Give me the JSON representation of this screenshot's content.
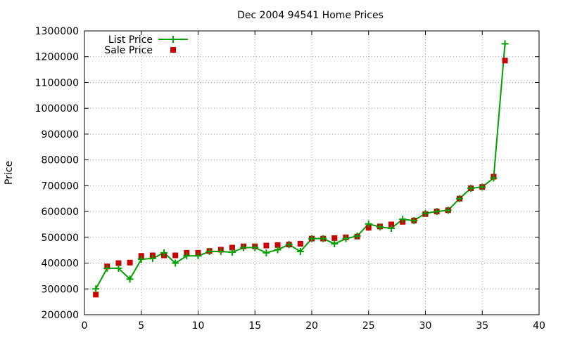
{
  "chart_data": {
    "type": "line",
    "title": "Dec 2004 94541 Home Prices",
    "xlabel": "",
    "ylabel": "Price",
    "xlim": [
      0,
      40
    ],
    "ylim": [
      200000,
      1300000
    ],
    "x_ticks": [
      0,
      5,
      10,
      15,
      20,
      25,
      30,
      35,
      40
    ],
    "y_ticks": [
      200000,
      300000,
      400000,
      500000,
      600000,
      700000,
      800000,
      900000,
      1000000,
      1100000,
      1200000,
      1300000
    ],
    "grid": true,
    "legend_position": "top-left",
    "x": [
      1,
      2,
      3,
      4,
      5,
      6,
      7,
      8,
      9,
      10,
      11,
      12,
      13,
      14,
      15,
      16,
      17,
      18,
      19,
      20,
      21,
      22,
      23,
      24,
      25,
      26,
      27,
      28,
      29,
      30,
      31,
      32,
      33,
      34,
      35,
      36,
      37
    ],
    "series": [
      {
        "name": "List Price",
        "style": "line+cross",
        "color": "#00a000",
        "values": [
          300000,
          380000,
          380000,
          338000,
          415000,
          418000,
          440000,
          400000,
          428000,
          428000,
          445000,
          445000,
          442000,
          460000,
          460000,
          440000,
          452000,
          472000,
          445000,
          495000,
          495000,
          475000,
          495000,
          505000,
          552000,
          540000,
          535000,
          570000,
          565000,
          593000,
          600000,
          605000,
          650000,
          690000,
          695000,
          730000,
          1250000
        ]
      },
      {
        "name": "Sale Price",
        "style": "square",
        "color": "#cc0000",
        "values": [
          278000,
          387000,
          400000,
          402000,
          428000,
          430000,
          430000,
          430000,
          440000,
          440000,
          447000,
          452000,
          460000,
          465000,
          465000,
          468000,
          470000,
          472000,
          475000,
          495000,
          495000,
          497000,
          500000,
          503000,
          537000,
          542000,
          550000,
          560000,
          565000,
          590000,
          600000,
          605000,
          650000,
          690000,
          695000,
          735000,
          1185000
        ]
      }
    ]
  }
}
